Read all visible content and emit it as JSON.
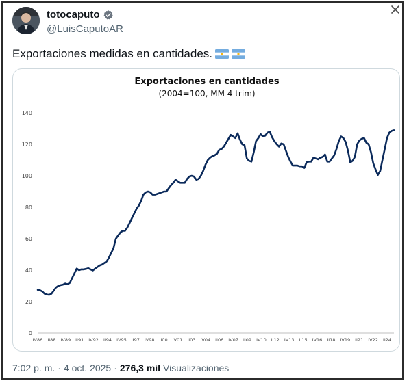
{
  "author": {
    "display_name": "totocaputo",
    "handle": "@LuisCaputoAR"
  },
  "tweet": {
    "text": "Exportaciones medidas en cantidades."
  },
  "meta": {
    "time": "7:02 p. m.",
    "sep1": "·",
    "date": "4 oct. 2025",
    "sep2": "·",
    "views_count": "276,3 mil",
    "views_label": "Visualizaciones"
  },
  "colors": {
    "line": "#0b2a5b",
    "verified": "#6b7580",
    "flag_blue": "#74acdf",
    "flag_sun": "#f6b40e"
  },
  "chart_data": {
    "type": "line",
    "title": "Exportaciones en cantidades",
    "subtitle": "(2004=100, MM 4 trim)",
    "ylim": [
      0,
      140
    ],
    "yticks": [
      "0",
      "20",
      "40",
      "60",
      "80",
      "100",
      "120",
      "140"
    ],
    "xticks": [
      "IV86",
      "II88",
      "IV89",
      "II91",
      "IV92",
      "II94",
      "IV95",
      "II97",
      "IV98",
      "II00",
      "IV01",
      "II03",
      "IV04",
      "II06",
      "IV07",
      "II09",
      "IV10",
      "II12",
      "IV13",
      "II15",
      "IV16",
      "II18",
      "IV19",
      "II21",
      "IV22",
      "II24"
    ],
    "x_range": [
      1986.75,
      2025.5
    ],
    "series": [
      {
        "points": [
          [
            1986.75,
            27.5
          ],
          [
            1987.0,
            27.2
          ],
          [
            1987.25,
            26.5
          ],
          [
            1987.5,
            25
          ],
          [
            1987.75,
            24.5
          ],
          [
            1988.0,
            24.3
          ],
          [
            1988.25,
            25
          ],
          [
            1988.5,
            27
          ],
          [
            1988.75,
            29
          ],
          [
            1989.0,
            30
          ],
          [
            1989.25,
            30.5
          ],
          [
            1989.5,
            30.8
          ],
          [
            1989.75,
            31.5
          ],
          [
            1990.0,
            31
          ],
          [
            1990.25,
            32
          ],
          [
            1990.5,
            35
          ],
          [
            1990.75,
            38
          ],
          [
            1991.0,
            41
          ],
          [
            1991.25,
            40
          ],
          [
            1991.5,
            40.5
          ],
          [
            1991.75,
            40.5
          ],
          [
            1992.0,
            40.8
          ],
          [
            1992.25,
            41.2
          ],
          [
            1992.5,
            40.5
          ],
          [
            1992.75,
            39.8
          ],
          [
            1993.0,
            41
          ],
          [
            1993.25,
            42
          ],
          [
            1993.5,
            43
          ],
          [
            1993.75,
            43.5
          ],
          [
            1994.0,
            44.5
          ],
          [
            1994.25,
            45.5
          ],
          [
            1994.5,
            48
          ],
          [
            1994.75,
            51
          ],
          [
            1995.0,
            54
          ],
          [
            1995.25,
            60
          ],
          [
            1995.5,
            62
          ],
          [
            1995.75,
            64
          ],
          [
            1996.0,
            65
          ],
          [
            1996.25,
            65
          ],
          [
            1996.5,
            67
          ],
          [
            1996.75,
            70
          ],
          [
            1997.0,
            73
          ],
          [
            1997.25,
            76
          ],
          [
            1997.5,
            79
          ],
          [
            1997.75,
            81
          ],
          [
            1998.0,
            84
          ],
          [
            1998.25,
            88
          ],
          [
            1998.5,
            89.5
          ],
          [
            1998.75,
            90
          ],
          [
            1999.0,
            89.5
          ],
          [
            1999.25,
            88
          ],
          [
            1999.5,
            88
          ],
          [
            1999.75,
            88.5
          ],
          [
            2000.0,
            89
          ],
          [
            2000.25,
            89.5
          ],
          [
            2000.5,
            90
          ],
          [
            2000.75,
            90
          ],
          [
            2001.0,
            92
          ],
          [
            2001.25,
            94
          ],
          [
            2001.5,
            95.5
          ],
          [
            2001.75,
            97.5
          ],
          [
            2002.0,
            96.5
          ],
          [
            2002.25,
            95.5
          ],
          [
            2002.5,
            95.5
          ],
          [
            2002.75,
            95.5
          ],
          [
            2003.0,
            98
          ],
          [
            2003.25,
            99.5
          ],
          [
            2003.5,
            100
          ],
          [
            2003.75,
            99.5
          ],
          [
            2004.0,
            97.5
          ],
          [
            2004.25,
            98
          ],
          [
            2004.5,
            100
          ],
          [
            2004.75,
            103
          ],
          [
            2005.0,
            107
          ],
          [
            2005.25,
            110
          ],
          [
            2005.5,
            111.5
          ],
          [
            2005.75,
            112.5
          ],
          [
            2006.0,
            113
          ],
          [
            2006.25,
            114
          ],
          [
            2006.5,
            116.5
          ],
          [
            2006.75,
            117
          ],
          [
            2007.0,
            118.5
          ],
          [
            2007.25,
            121
          ],
          [
            2007.5,
            123.5
          ],
          [
            2007.75,
            126
          ],
          [
            2008.0,
            125
          ],
          [
            2008.25,
            124
          ],
          [
            2008.5,
            127
          ],
          [
            2008.75,
            123
          ],
          [
            2009.0,
            120
          ],
          [
            2009.25,
            119.5
          ],
          [
            2009.5,
            111
          ],
          [
            2009.75,
            109.5
          ],
          [
            2010.0,
            109
          ],
          [
            2010.25,
            115
          ],
          [
            2010.5,
            122
          ],
          [
            2010.75,
            124
          ],
          [
            2011.0,
            126.5
          ],
          [
            2011.25,
            125
          ],
          [
            2011.5,
            125.5
          ],
          [
            2011.75,
            127.5
          ],
          [
            2012.0,
            128
          ],
          [
            2012.25,
            124.5
          ],
          [
            2012.5,
            122
          ],
          [
            2012.75,
            120
          ],
          [
            2013.0,
            118.5
          ],
          [
            2013.25,
            120.5
          ],
          [
            2013.5,
            120
          ],
          [
            2013.75,
            116
          ],
          [
            2014.0,
            112
          ],
          [
            2014.25,
            109
          ],
          [
            2014.5,
            106.5
          ],
          [
            2014.75,
            106.5
          ],
          [
            2015.0,
            106.5
          ],
          [
            2015.25,
            106
          ],
          [
            2015.5,
            106
          ],
          [
            2015.75,
            105
          ],
          [
            2016.0,
            108.5
          ],
          [
            2016.25,
            109
          ],
          [
            2016.5,
            109
          ],
          [
            2016.75,
            111.5
          ],
          [
            2017.0,
            111
          ],
          [
            2017.25,
            110.5
          ],
          [
            2017.5,
            111.5
          ],
          [
            2017.75,
            112
          ],
          [
            2018.0,
            113.5
          ],
          [
            2018.25,
            109
          ],
          [
            2018.5,
            109
          ],
          [
            2018.75,
            111
          ],
          [
            2019.0,
            113
          ],
          [
            2019.25,
            117
          ],
          [
            2019.5,
            122
          ],
          [
            2019.75,
            125
          ],
          [
            2020.0,
            124
          ],
          [
            2020.25,
            121.5
          ],
          [
            2020.5,
            116
          ],
          [
            2020.75,
            108.5
          ],
          [
            2021.0,
            109.5
          ],
          [
            2021.25,
            112
          ],
          [
            2021.5,
            120
          ],
          [
            2021.75,
            122.5
          ],
          [
            2022.0,
            123.5
          ],
          [
            2022.25,
            124
          ],
          [
            2022.5,
            121
          ],
          [
            2022.75,
            120
          ],
          [
            2023.0,
            115
          ],
          [
            2023.25,
            108
          ],
          [
            2023.5,
            104
          ],
          [
            2023.75,
            100.5
          ],
          [
            2024.0,
            103
          ],
          [
            2024.25,
            110
          ],
          [
            2024.5,
            117
          ],
          [
            2024.75,
            124
          ],
          [
            2025.0,
            127.5
          ],
          [
            2025.25,
            128.5
          ],
          [
            2025.5,
            129
          ]
        ]
      }
    ],
    "grid": false,
    "legend": "none"
  }
}
